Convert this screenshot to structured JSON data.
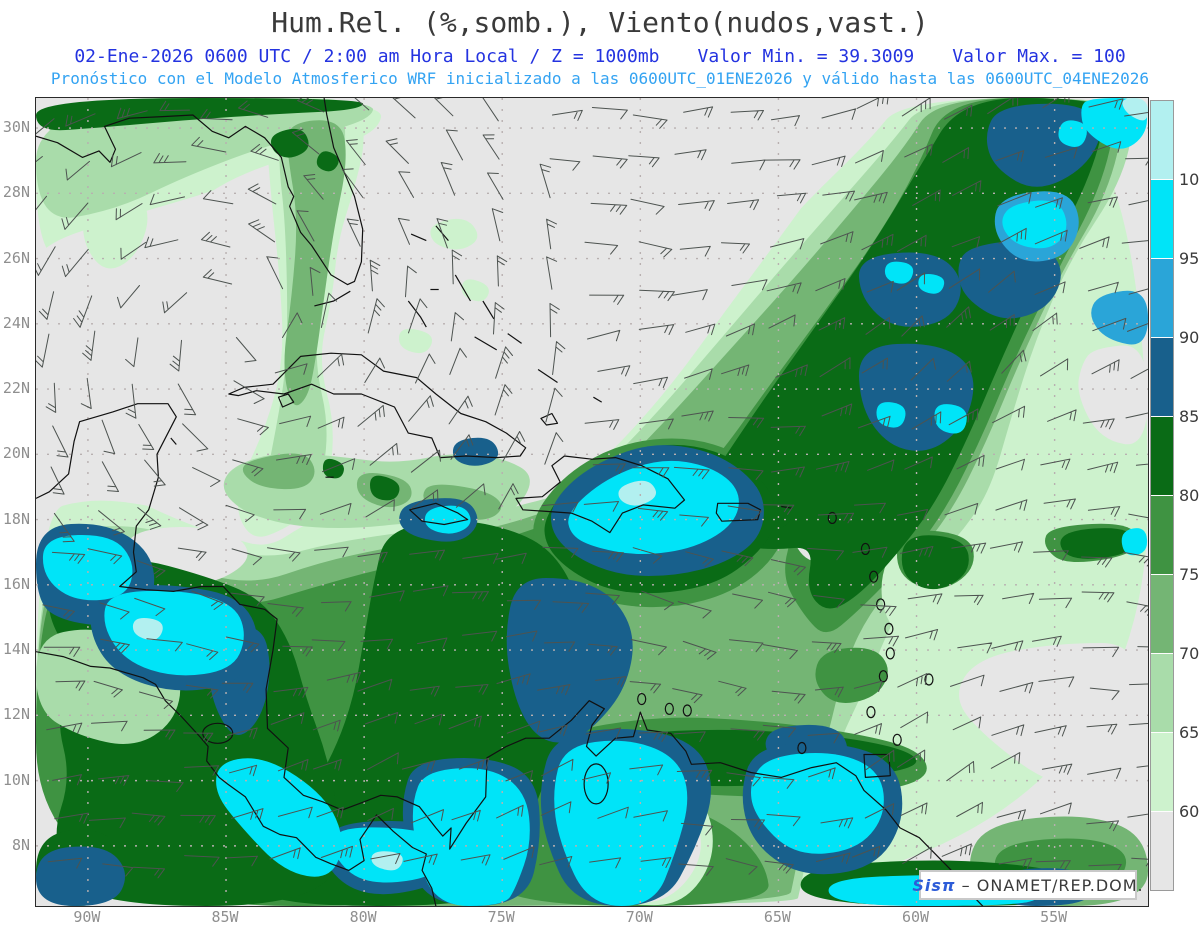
{
  "header": {
    "title": "Hum.Rel. (%,somb.), Viento(nudos,vast.)",
    "title_color": "#3a3a3a",
    "datetime_text": "02-Ene-2026  0600 UTC / 2:00 am Hora Local / Z = 1000mb",
    "valor_min_text": "Valor Min. = 39.3009",
    "valor_max_text": "Valor Max. = 100",
    "datetime_color": "#2433e0",
    "forecast_text": "Pronóstico con el Modelo Atmosferico WRF inicializado a las 0600UTC_01ENE2026 y válido hasta las  0600UTC_04ENE2026",
    "forecast_color": "#33a3f2"
  },
  "map": {
    "lat_labels": [
      {
        "label": "30N",
        "lat": 30
      },
      {
        "label": "28N",
        "lat": 28
      },
      {
        "label": "26N",
        "lat": 26
      },
      {
        "label": "24N",
        "lat": 24
      },
      {
        "label": "22N",
        "lat": 22
      },
      {
        "label": "20N",
        "lat": 20
      },
      {
        "label": "18N",
        "lat": 18
      },
      {
        "label": "16N",
        "lat": 16
      },
      {
        "label": "14N",
        "lat": 14
      },
      {
        "label": "12N",
        "lat": 12
      },
      {
        "label": "10N",
        "lat": 10
      },
      {
        "label": "8N",
        "lat": 8
      }
    ],
    "lon_labels": [
      {
        "label": "90W",
        "lon": -90
      },
      {
        "label": "85W",
        "lon": -85
      },
      {
        "label": "80W",
        "lon": -80
      },
      {
        "label": "75W",
        "lon": -75
      },
      {
        "label": "70W",
        "lon": -70
      },
      {
        "label": "65W",
        "lon": -65
      },
      {
        "label": "60W",
        "lon": -60
      },
      {
        "label": "55W",
        "lon": -55
      }
    ],
    "axis_label_color": "#8f8f8f",
    "gridline_color": "#b8b0b0",
    "coastline_color": "#111111",
    "windbarb_color": "#4d5350",
    "branding": {
      "app": "Sisπ",
      "separator": "–",
      "source": "ONAMET/REP.DOM.",
      "app_color": "#2d5cd8",
      "text_color": "#3a3a3a"
    }
  },
  "colorbar": {
    "labels_top_to_bottom": [
      "100",
      "95",
      "90",
      "85",
      "80",
      "75",
      "70",
      "65",
      "60"
    ],
    "colors_top_to_bottom": [
      "#b2f0f0",
      "#00e4f8",
      "#2aa5d8",
      "#18608c",
      "#0a6b16",
      "#3f9342",
      "#74b574",
      "#a9dcaa",
      "#cdf2cd",
      "#e6e6e6"
    ]
  },
  "chart_data": {
    "type": "heatmap",
    "title": "Hum.Rel. (%,somb.), Viento(nudos,vast.)",
    "variable": "Humedad Relativa (%)",
    "wind_units": "nudos",
    "pressure_level": "1000mb",
    "valid_time": "02-Ene-2026 0600 UTC / 2:00 am Hora Local",
    "model_init": "0600UTC_01ENE2026",
    "model_end": "0600UTC_04ENE2026",
    "valor_min": 39.3009,
    "valor_max": 100,
    "scale_levels_percent": [
      60,
      65,
      70,
      75,
      80,
      85,
      90,
      95,
      100
    ],
    "scale_colors": {
      "dry": "#e6e6e6",
      "g60": "#cdf2cd",
      "g65": "#a9dcaa",
      "g70": "#74b574",
      "g75": "#3f9342",
      "g80": "#0a6b16",
      "b85": "#18608c",
      "b90": "#2aa5d8",
      "c95": "#00e4f8",
      "c100": "#b2f0f0"
    },
    "lat_range": [
      6.1,
      30.9
    ],
    "lon_range": [
      -91.9,
      -51.6
    ],
    "notable_features": [
      "Dry air (<60%) over Gulf of Mexico, Florida Straits, Bahamas and western Atlantic",
      "Very humid band (95-100%) over Hispaniola and Jamaica",
      "Humid band (80-100%) extending northeast from Hispaniola to the top-right corner",
      "95-100% humidity along Honduras/Nicaragua Caribbean coast, Costa Rica, Panama",
      "95-100% humidity along Colombia and Venezuela coasts",
      "Dry pockets east of the Lesser Antilles and over interior Venezuela"
    ]
  }
}
